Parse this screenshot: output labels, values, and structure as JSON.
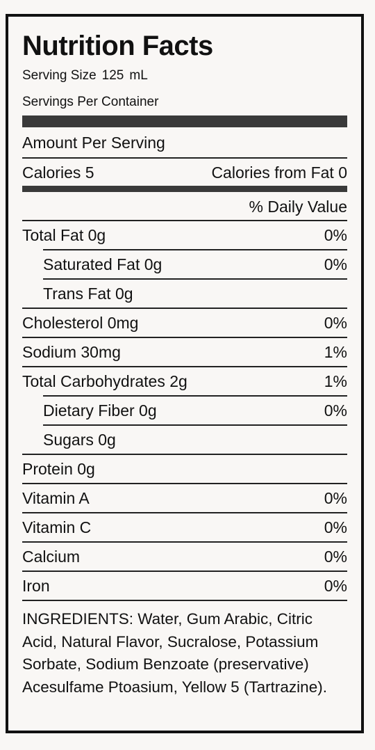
{
  "title": "Nutrition Facts",
  "serving_size": {
    "label": "Serving Size",
    "value": "125",
    "unit": "mL"
  },
  "servings_per_container": {
    "label": "Servings Per Container",
    "value": ""
  },
  "amount_per_serving": "Amount Per Serving",
  "calories": "Calories 5",
  "calories_from_fat": "Calories from Fat 0",
  "daily_value_header": "% Daily Value",
  "nutrients": [
    {
      "name": "Total Fat 0g",
      "dv": "0%"
    },
    {
      "name": "Saturated Fat 0g",
      "dv": "0%"
    },
    {
      "name": "Trans Fat 0g",
      "dv": ""
    },
    {
      "name": "Cholesterol 0mg",
      "dv": "0%"
    },
    {
      "name": "Sodium 30mg",
      "dv": "1%"
    },
    {
      "name": "Total Carbohydrates 2g",
      "dv": "1%"
    },
    {
      "name": "Dietary Fiber 0g",
      "dv": "0%"
    },
    {
      "name": "Sugars 0g",
      "dv": ""
    },
    {
      "name": "Protein 0g",
      "dv": ""
    },
    {
      "name": "Vitamin A",
      "dv": "0%"
    },
    {
      "name": "Vitamin C",
      "dv": "0%"
    },
    {
      "name": "Calcium",
      "dv": "0%"
    },
    {
      "name": "Iron",
      "dv": "0%"
    }
  ],
  "ingredients": "INGREDIENTS: Water, Gum Arabic, Citric Acid, Natural Flavor, Sucralose, Potassium Sorbate, Sodium Benzoate (preservative) Acesulfame Ptoasium, Yellow 5 (Tartrazine)."
}
